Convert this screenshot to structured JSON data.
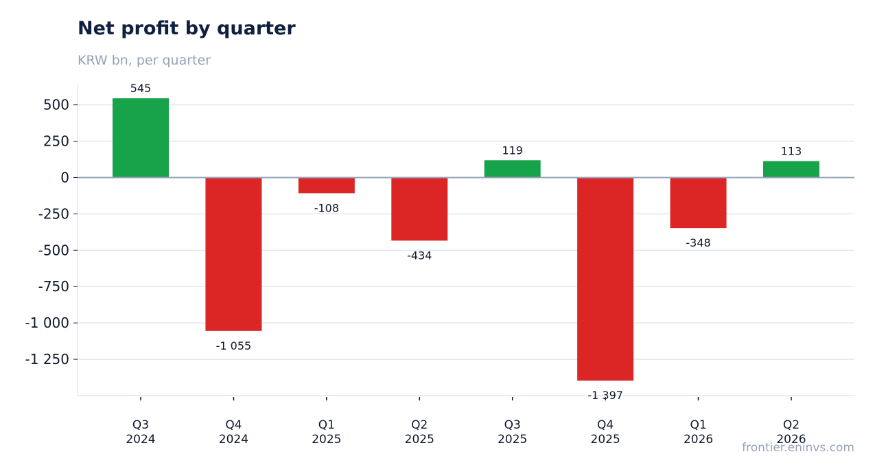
{
  "chart_data": {
    "type": "bar",
    "title": "Net profit by quarter",
    "subtitle": "KRW bn, per quarter",
    "categories": [
      [
        "Q3",
        "2024"
      ],
      [
        "Q4",
        "2024"
      ],
      [
        "Q1",
        "2025"
      ],
      [
        "Q2",
        "2025"
      ],
      [
        "Q3",
        "2025"
      ],
      [
        "Q4",
        "2025"
      ],
      [
        "Q1",
        "2026"
      ],
      [
        "Q2",
        "2026"
      ]
    ],
    "values": [
      545,
      -1055,
      -108,
      -434,
      119,
      -1397,
      -348,
      113
    ],
    "value_labels": [
      "545",
      "-1 055",
      "-108",
      "-434",
      "119",
      "-1 397",
      "-348",
      "113"
    ],
    "yticks": [
      500,
      250,
      0,
      -250,
      -500,
      -750,
      -1000,
      -1250
    ],
    "ytick_labels": [
      "500",
      "250",
      "0",
      "-250",
      "-500",
      "-750",
      "-1 000",
      "-1 250"
    ],
    "ylim": [
      -1500,
      640
    ],
    "grid": true,
    "legend": "none",
    "colors": {
      "positive": "#16a34a",
      "negative": "#dc2626",
      "grid": "#e2e8f0",
      "zero_line": "#94a3b8"
    }
  },
  "source": "frontier.eninvs.com"
}
